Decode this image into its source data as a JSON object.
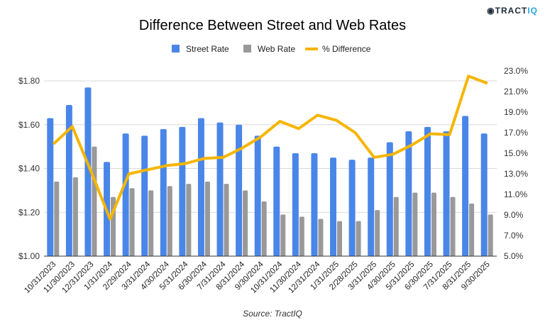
{
  "logo": {
    "text": "TRACTIQ",
    "prefix": "TRACT",
    "suffix": "IQ"
  },
  "chart_data": {
    "type": "bar",
    "title": "Difference Between Street and Web Rates",
    "source": "Source: TractIQ",
    "legend_position": "top",
    "categories": [
      "10/31/2023",
      "11/30/2023",
      "12/31/2023",
      "1/31/2024",
      "2/29/2024",
      "3/31/2024",
      "4/30/2024",
      "5/31/2024",
      "6/30/2024",
      "7/31/2024",
      "8/31/2024",
      "9/30/2024",
      "10/31/2024",
      "11/30/2024",
      "12/31/2024",
      "1/31/2025",
      "2/28/2025",
      "3/31/2025",
      "4/30/2025",
      "5/31/2025",
      "6/30/2025",
      "7/31/2025",
      "8/31/2025",
      "9/30/2025"
    ],
    "series": [
      {
        "name": "Street Rate",
        "type": "bar",
        "axis": "left",
        "color": "#4a86e8",
        "values": [
          1.63,
          1.69,
          1.77,
          1.43,
          1.56,
          1.55,
          1.58,
          1.59,
          1.63,
          1.61,
          1.6,
          1.55,
          1.5,
          1.47,
          1.47,
          1.45,
          1.44,
          1.45,
          1.52,
          1.57,
          1.59,
          1.57,
          1.64,
          1.56
        ]
      },
      {
        "name": "Web Rate",
        "type": "bar",
        "axis": "left",
        "color": "#999999",
        "values": [
          1.34,
          1.36,
          1.5,
          1.27,
          1.31,
          1.3,
          1.32,
          1.33,
          1.34,
          1.33,
          1.3,
          1.25,
          1.19,
          1.18,
          1.17,
          1.16,
          1.16,
          1.21,
          1.27,
          1.29,
          1.29,
          1.27,
          1.24,
          1.19
        ]
      },
      {
        "name": "% Difference",
        "type": "line",
        "axis": "right",
        "color": "#f6b500",
        "values": [
          15.9,
          17.6,
          13.2,
          8.6,
          13.0,
          13.4,
          13.8,
          14.0,
          14.5,
          14.6,
          15.5,
          16.6,
          18.1,
          17.4,
          18.7,
          18.2,
          17.0,
          14.6,
          14.9,
          15.8,
          16.9,
          16.8,
          22.5,
          21.8
        ]
      }
    ],
    "left_axis": {
      "min": 1.0,
      "max": 1.8,
      "ticks": [
        "$1.00",
        "$1.20",
        "$1.40",
        "$1.60",
        "$1.80"
      ]
    },
    "right_axis": {
      "min": 5,
      "max": 23,
      "ticks": [
        "5.0%",
        "7.0%",
        "9.0%",
        "11.0%",
        "13.0%",
        "15.0%",
        "17.0%",
        "19.0%",
        "21.0%",
        "23.0%"
      ]
    },
    "grid": true
  }
}
